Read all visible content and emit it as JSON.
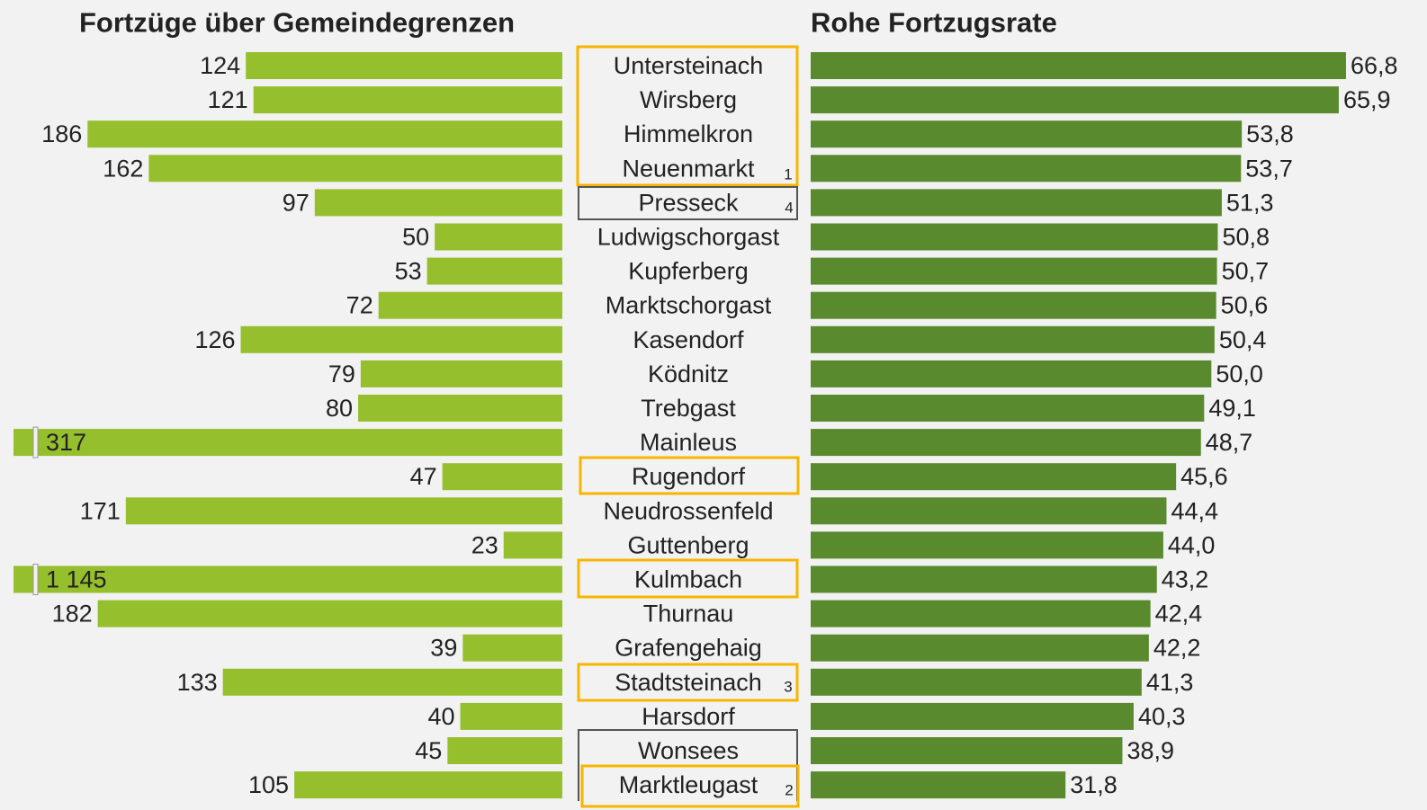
{
  "chart_data": {
    "type": "butterfly-bar",
    "categories": [
      "Untersteinach",
      "Wirsberg",
      "Himmelkron",
      "Neuenmarkt",
      "Presseck",
      "Ludwigschorgast",
      "Kupferberg",
      "Marktschorgast",
      "Kasendorf",
      "Ködnitz",
      "Trebgast",
      "Mainleus",
      "Rugendorf",
      "Neudrossenfeld",
      "Guttenberg",
      "Kulmbach",
      "Thurnau",
      "Grafengehaig",
      "Stadtsteinach",
      "Harsdorf",
      "Wonsees",
      "Marktleugast"
    ],
    "series": [
      {
        "name": "Fortzüge über Gemeindegrenzen",
        "color": "#96bf2d",
        "xlim": [
          0,
          215
        ],
        "values": [
          124,
          121,
          186,
          162,
          97,
          50,
          53,
          72,
          126,
          79,
          80,
          317,
          47,
          171,
          23,
          1145,
          182,
          39,
          133,
          40,
          45,
          105
        ],
        "value_labels": [
          "124",
          "121",
          "186",
          "162",
          "97",
          "50",
          "53",
          "72",
          "126",
          "79",
          "80",
          "317",
          "47",
          "171",
          "23",
          "1 145",
          "182",
          "39",
          "133",
          "40",
          "45",
          "105"
        ]
      },
      {
        "name": "Rohe Fortzugsrate",
        "color": "#5a8a2e",
        "xlim": [
          0,
          75
        ],
        "values": [
          66.8,
          65.9,
          53.8,
          53.7,
          51.3,
          50.8,
          50.7,
          50.6,
          50.4,
          50.0,
          49.1,
          48.7,
          45.6,
          44.4,
          44.0,
          43.2,
          42.4,
          42.2,
          41.3,
          40.3,
          38.9,
          31.8
        ],
        "value_labels": [
          "66,8",
          "65,9",
          "53,8",
          "53,7",
          "51,3",
          "50,8",
          "50,7",
          "50,6",
          "50,4",
          "50,0",
          "49,1",
          "48,7",
          "45,6",
          "44,4",
          "44,0",
          "43,2",
          "42,4",
          "42,2",
          "41,3",
          "40,3",
          "38,9",
          "31,8"
        ]
      }
    ],
    "annotations": [
      "1",
      "4",
      "3",
      "2"
    ]
  }
}
